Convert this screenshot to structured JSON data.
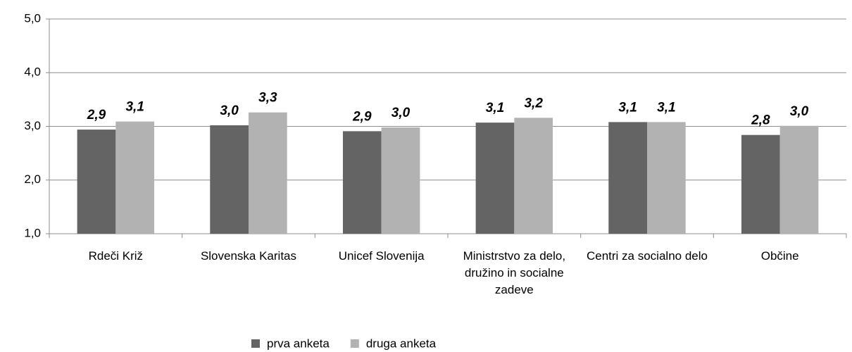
{
  "chart_data": {
    "type": "bar",
    "categories": [
      "Rdeči Križ",
      "Slovenska Karitas",
      "Unicef Slovenija",
      "Ministrstvo za delo, družino in socialne zadeve",
      "Centri za socialno delo",
      "Občine"
    ],
    "series": [
      {
        "name": "prva anketa",
        "color": "#646464",
        "values": [
          2.94,
          3.02,
          2.91,
          3.07,
          3.08,
          2.84
        ],
        "value_labels": [
          "2,9",
          "3,0",
          "2,9",
          "3,1",
          "3,1",
          "2,8"
        ]
      },
      {
        "name": "druga anketa",
        "color": "#b2b2b2",
        "values": [
          3.09,
          3.26,
          2.98,
          3.16,
          3.08,
          3.01
        ],
        "value_labels": [
          "3,1",
          "3,3",
          "3,0",
          "3,2",
          "3,1",
          "3,0"
        ]
      }
    ],
    "ylim": [
      1,
      5
    ],
    "yticks": [
      {
        "value": 1,
        "label": "1,0"
      },
      {
        "value": 2,
        "label": "2,0"
      },
      {
        "value": 3,
        "label": "3,0"
      },
      {
        "value": 4,
        "label": "4,0"
      },
      {
        "value": 5,
        "label": "5,0"
      }
    ],
    "grid": true,
    "legend": "bottom"
  }
}
